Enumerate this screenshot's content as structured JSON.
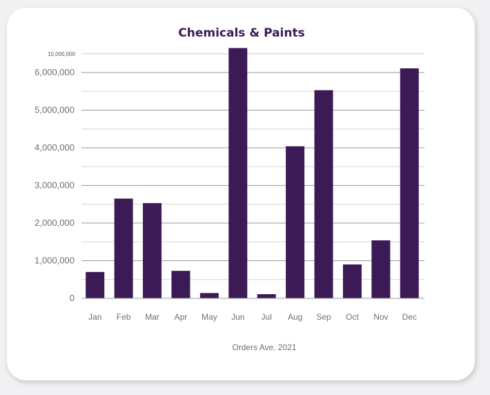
{
  "chart_data": {
    "type": "bar",
    "title": "Chemicals & Paints",
    "xlabel": "Orders Ave. 2021",
    "ylabel": "",
    "categories": [
      "Jan",
      "Feb",
      "Mar",
      "Apr",
      "May",
      "Jun",
      "Jul",
      "Aug",
      "Sep",
      "Oct",
      "Nov",
      "Dec"
    ],
    "values": [
      700000,
      2650000,
      2530000,
      730000,
      140000,
      6650000,
      110000,
      4040000,
      5530000,
      900000,
      1540000,
      6110000
    ],
    "ylim": [
      0,
      6500000
    ],
    "yticks": [
      {
        "value": 0,
        "label": "0"
      },
      {
        "value": 1000000,
        "label": "1,000,000"
      },
      {
        "value": 2000000,
        "label": "2,000,000"
      },
      {
        "value": 3000000,
        "label": "3,000,000"
      },
      {
        "value": 4000000,
        "label": "4,000,000"
      },
      {
        "value": 5000000,
        "label": "5,000,000"
      },
      {
        "value": 6000000,
        "label": "6,000,000"
      }
    ],
    "top_tick_label": "10,000,000",
    "bar_color": "#3b1a55",
    "title_color": "#3a1a52",
    "grid": true
  }
}
